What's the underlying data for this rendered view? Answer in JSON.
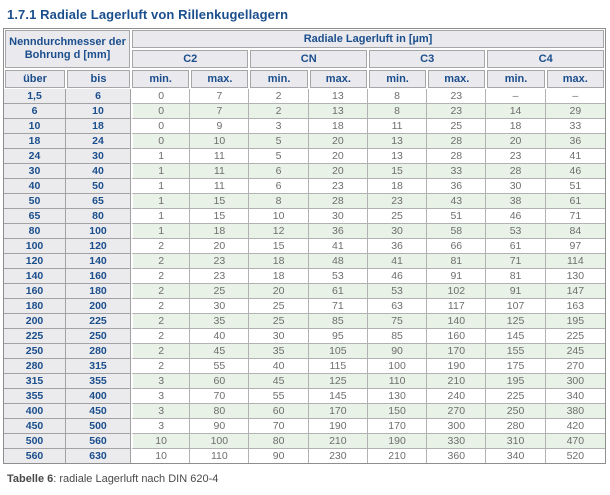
{
  "title": "1.7.1 Radiale Lagerluft von Rillenkugellagern",
  "table": {
    "corner_header": "Nenndurchmesser der Bohrung d [mm]",
    "main_header": "Radiale Lagerluft in [µm]",
    "clearance_classes": [
      "C2",
      "CN",
      "C3",
      "C4"
    ],
    "over_label": "über",
    "to_label": "bis",
    "min_label": "min.",
    "max_label": "max.",
    "rows": [
      [
        "1,5",
        "6",
        "0",
        "7",
        "2",
        "13",
        "8",
        "23",
        "–",
        "–"
      ],
      [
        "6",
        "10",
        "0",
        "7",
        "2",
        "13",
        "8",
        "23",
        "14",
        "29"
      ],
      [
        "10",
        "18",
        "0",
        "9",
        "3",
        "18",
        "11",
        "25",
        "18",
        "33"
      ],
      [
        "18",
        "24",
        "0",
        "10",
        "5",
        "20",
        "13",
        "28",
        "20",
        "36"
      ],
      [
        "24",
        "30",
        "1",
        "11",
        "5",
        "20",
        "13",
        "28",
        "23",
        "41"
      ],
      [
        "30",
        "40",
        "1",
        "11",
        "6",
        "20",
        "15",
        "33",
        "28",
        "46"
      ],
      [
        "40",
        "50",
        "1",
        "11",
        "6",
        "23",
        "18",
        "36",
        "30",
        "51"
      ],
      [
        "50",
        "65",
        "1",
        "15",
        "8",
        "28",
        "23",
        "43",
        "38",
        "61"
      ],
      [
        "65",
        "80",
        "1",
        "15",
        "10",
        "30",
        "25",
        "51",
        "46",
        "71"
      ],
      [
        "80",
        "100",
        "1",
        "18",
        "12",
        "36",
        "30",
        "58",
        "53",
        "84"
      ],
      [
        "100",
        "120",
        "2",
        "20",
        "15",
        "41",
        "36",
        "66",
        "61",
        "97"
      ],
      [
        "120",
        "140",
        "2",
        "23",
        "18",
        "48",
        "41",
        "81",
        "71",
        "114"
      ],
      [
        "140",
        "160",
        "2",
        "23",
        "18",
        "53",
        "46",
        "91",
        "81",
        "130"
      ],
      [
        "160",
        "180",
        "2",
        "25",
        "20",
        "61",
        "53",
        "102",
        "91",
        "147"
      ],
      [
        "180",
        "200",
        "2",
        "30",
        "25",
        "71",
        "63",
        "117",
        "107",
        "163"
      ],
      [
        "200",
        "225",
        "2",
        "35",
        "25",
        "85",
        "75",
        "140",
        "125",
        "195"
      ],
      [
        "225",
        "250",
        "2",
        "40",
        "30",
        "95",
        "85",
        "160",
        "145",
        "225"
      ],
      [
        "250",
        "280",
        "2",
        "45",
        "35",
        "105",
        "90",
        "170",
        "155",
        "245"
      ],
      [
        "280",
        "315",
        "2",
        "55",
        "40",
        "115",
        "100",
        "190",
        "175",
        "270"
      ],
      [
        "315",
        "355",
        "3",
        "60",
        "45",
        "125",
        "110",
        "210",
        "195",
        "300"
      ],
      [
        "355",
        "400",
        "3",
        "70",
        "55",
        "145",
        "130",
        "240",
        "225",
        "340"
      ],
      [
        "400",
        "450",
        "3",
        "80",
        "60",
        "170",
        "150",
        "270",
        "250",
        "380"
      ],
      [
        "450",
        "500",
        "3",
        "90",
        "70",
        "190",
        "170",
        "300",
        "280",
        "420"
      ],
      [
        "500",
        "560",
        "10",
        "100",
        "80",
        "210",
        "190",
        "330",
        "310",
        "470"
      ],
      [
        "560",
        "630",
        "10",
        "110",
        "90",
        "230",
        "210",
        "360",
        "340",
        "520"
      ]
    ]
  },
  "caption": {
    "label": "Tabelle 6",
    "text": ": radiale Lagerluft nach DIN 620-4"
  },
  "colors": {
    "accent_blue": "#1b4e8c",
    "header_bg": "#e9e9ee",
    "left_column_bg": "#ebebed",
    "row_alt_bg": "#e9f2e6",
    "grid_line": "#b2b2b4",
    "data_text": "#6e6e6e"
  }
}
